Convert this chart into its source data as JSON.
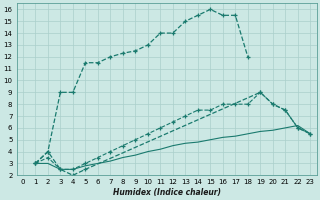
{
  "xlabel": "Humidex (Indice chaleur)",
  "background_color": "#cce8e4",
  "line_color": "#1a7a6e",
  "grid_color": "#aacfcb",
  "xlim": [
    -0.5,
    23.5
  ],
  "ylim": [
    2,
    16.5
  ],
  "xticks": [
    0,
    1,
    2,
    3,
    4,
    5,
    6,
    7,
    8,
    9,
    10,
    11,
    12,
    13,
    14,
    15,
    16,
    17,
    18,
    19,
    20,
    21,
    22,
    23
  ],
  "yticks": [
    2,
    3,
    4,
    5,
    6,
    7,
    8,
    9,
    10,
    11,
    12,
    13,
    14,
    15,
    16
  ],
  "lines": [
    {
      "x": [
        1,
        2,
        3,
        4,
        5,
        6,
        7,
        8,
        9,
        10,
        11,
        12,
        13,
        14,
        15,
        16,
        17,
        18
      ],
      "y": [
        3,
        4,
        9,
        9,
        11.5,
        11.5,
        12.0,
        12.3,
        12.5,
        13.0,
        14.0,
        14.0,
        15.0,
        15.5,
        16.0,
        15.5,
        15.5,
        12.0
      ],
      "marker": "+",
      "linestyle": "--",
      "linewidth": 0.9
    },
    {
      "x": [
        1,
        2,
        3,
        4,
        5,
        19,
        20,
        21,
        22,
        23
      ],
      "y": [
        3,
        4,
        2.5,
        2.0,
        2.5,
        9.0,
        8.0,
        7.5,
        6.0,
        5.5
      ],
      "marker": "+",
      "linestyle": "--",
      "linewidth": 0.9
    },
    {
      "x": [
        1,
        2,
        3,
        4,
        5,
        6,
        7,
        8,
        9,
        10,
        11,
        12,
        13,
        14,
        15,
        16,
        17,
        18,
        19,
        20,
        21,
        22,
        23
      ],
      "y": [
        3.0,
        3.0,
        2.5,
        2.5,
        2.8,
        3.0,
        3.2,
        3.5,
        3.7,
        4.0,
        4.2,
        4.5,
        4.7,
        4.8,
        5.0,
        5.2,
        5.3,
        5.5,
        5.7,
        5.8,
        6.0,
        6.2,
        5.5
      ],
      "marker": null,
      "linestyle": "-",
      "linewidth": 0.8
    },
    {
      "x": [
        1,
        2,
        3,
        4,
        5,
        6,
        7,
        8,
        9,
        10,
        11,
        12,
        13,
        14,
        15,
        16,
        17,
        18,
        19,
        20,
        21,
        22,
        23
      ],
      "y": [
        3.0,
        3.5,
        2.5,
        2.5,
        3.0,
        3.5,
        4.0,
        4.5,
        5.0,
        5.5,
        6.0,
        6.5,
        7.0,
        7.5,
        7.5,
        8.0,
        8.0,
        8.0,
        9.0,
        8.0,
        7.5,
        6.0,
        5.5
      ],
      "marker": "+",
      "linestyle": "--",
      "linewidth": 0.8
    }
  ]
}
